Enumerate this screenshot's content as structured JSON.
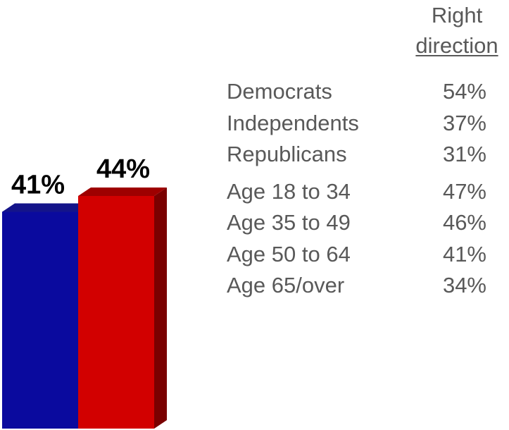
{
  "chart_data": {
    "type": "bar",
    "bars": [
      {
        "value": 41,
        "label": "41%",
        "color": "#0A0A9E",
        "shade": "#050560",
        "top": "#14148a"
      },
      {
        "value": 44,
        "label": "44%",
        "color": "#D20000",
        "shade": "#7A0000",
        "top": "#9E0000"
      }
    ],
    "breakdown": {
      "header": [
        "Right",
        "direction"
      ],
      "groups": [
        [
          {
            "label": "Democrats",
            "value": "54%"
          },
          {
            "label": "Independents",
            "value": "37%"
          },
          {
            "label": "Republicans",
            "value": "31%"
          }
        ],
        [
          {
            "label": "Age 18 to 34",
            "value": "47%"
          },
          {
            "label": "Age 35 to 49",
            "value": "46%"
          },
          {
            "label": "Age 50 to 64",
            "value": "41%"
          },
          {
            "label": "Age 65/over",
            "value": "34%"
          }
        ]
      ]
    }
  }
}
